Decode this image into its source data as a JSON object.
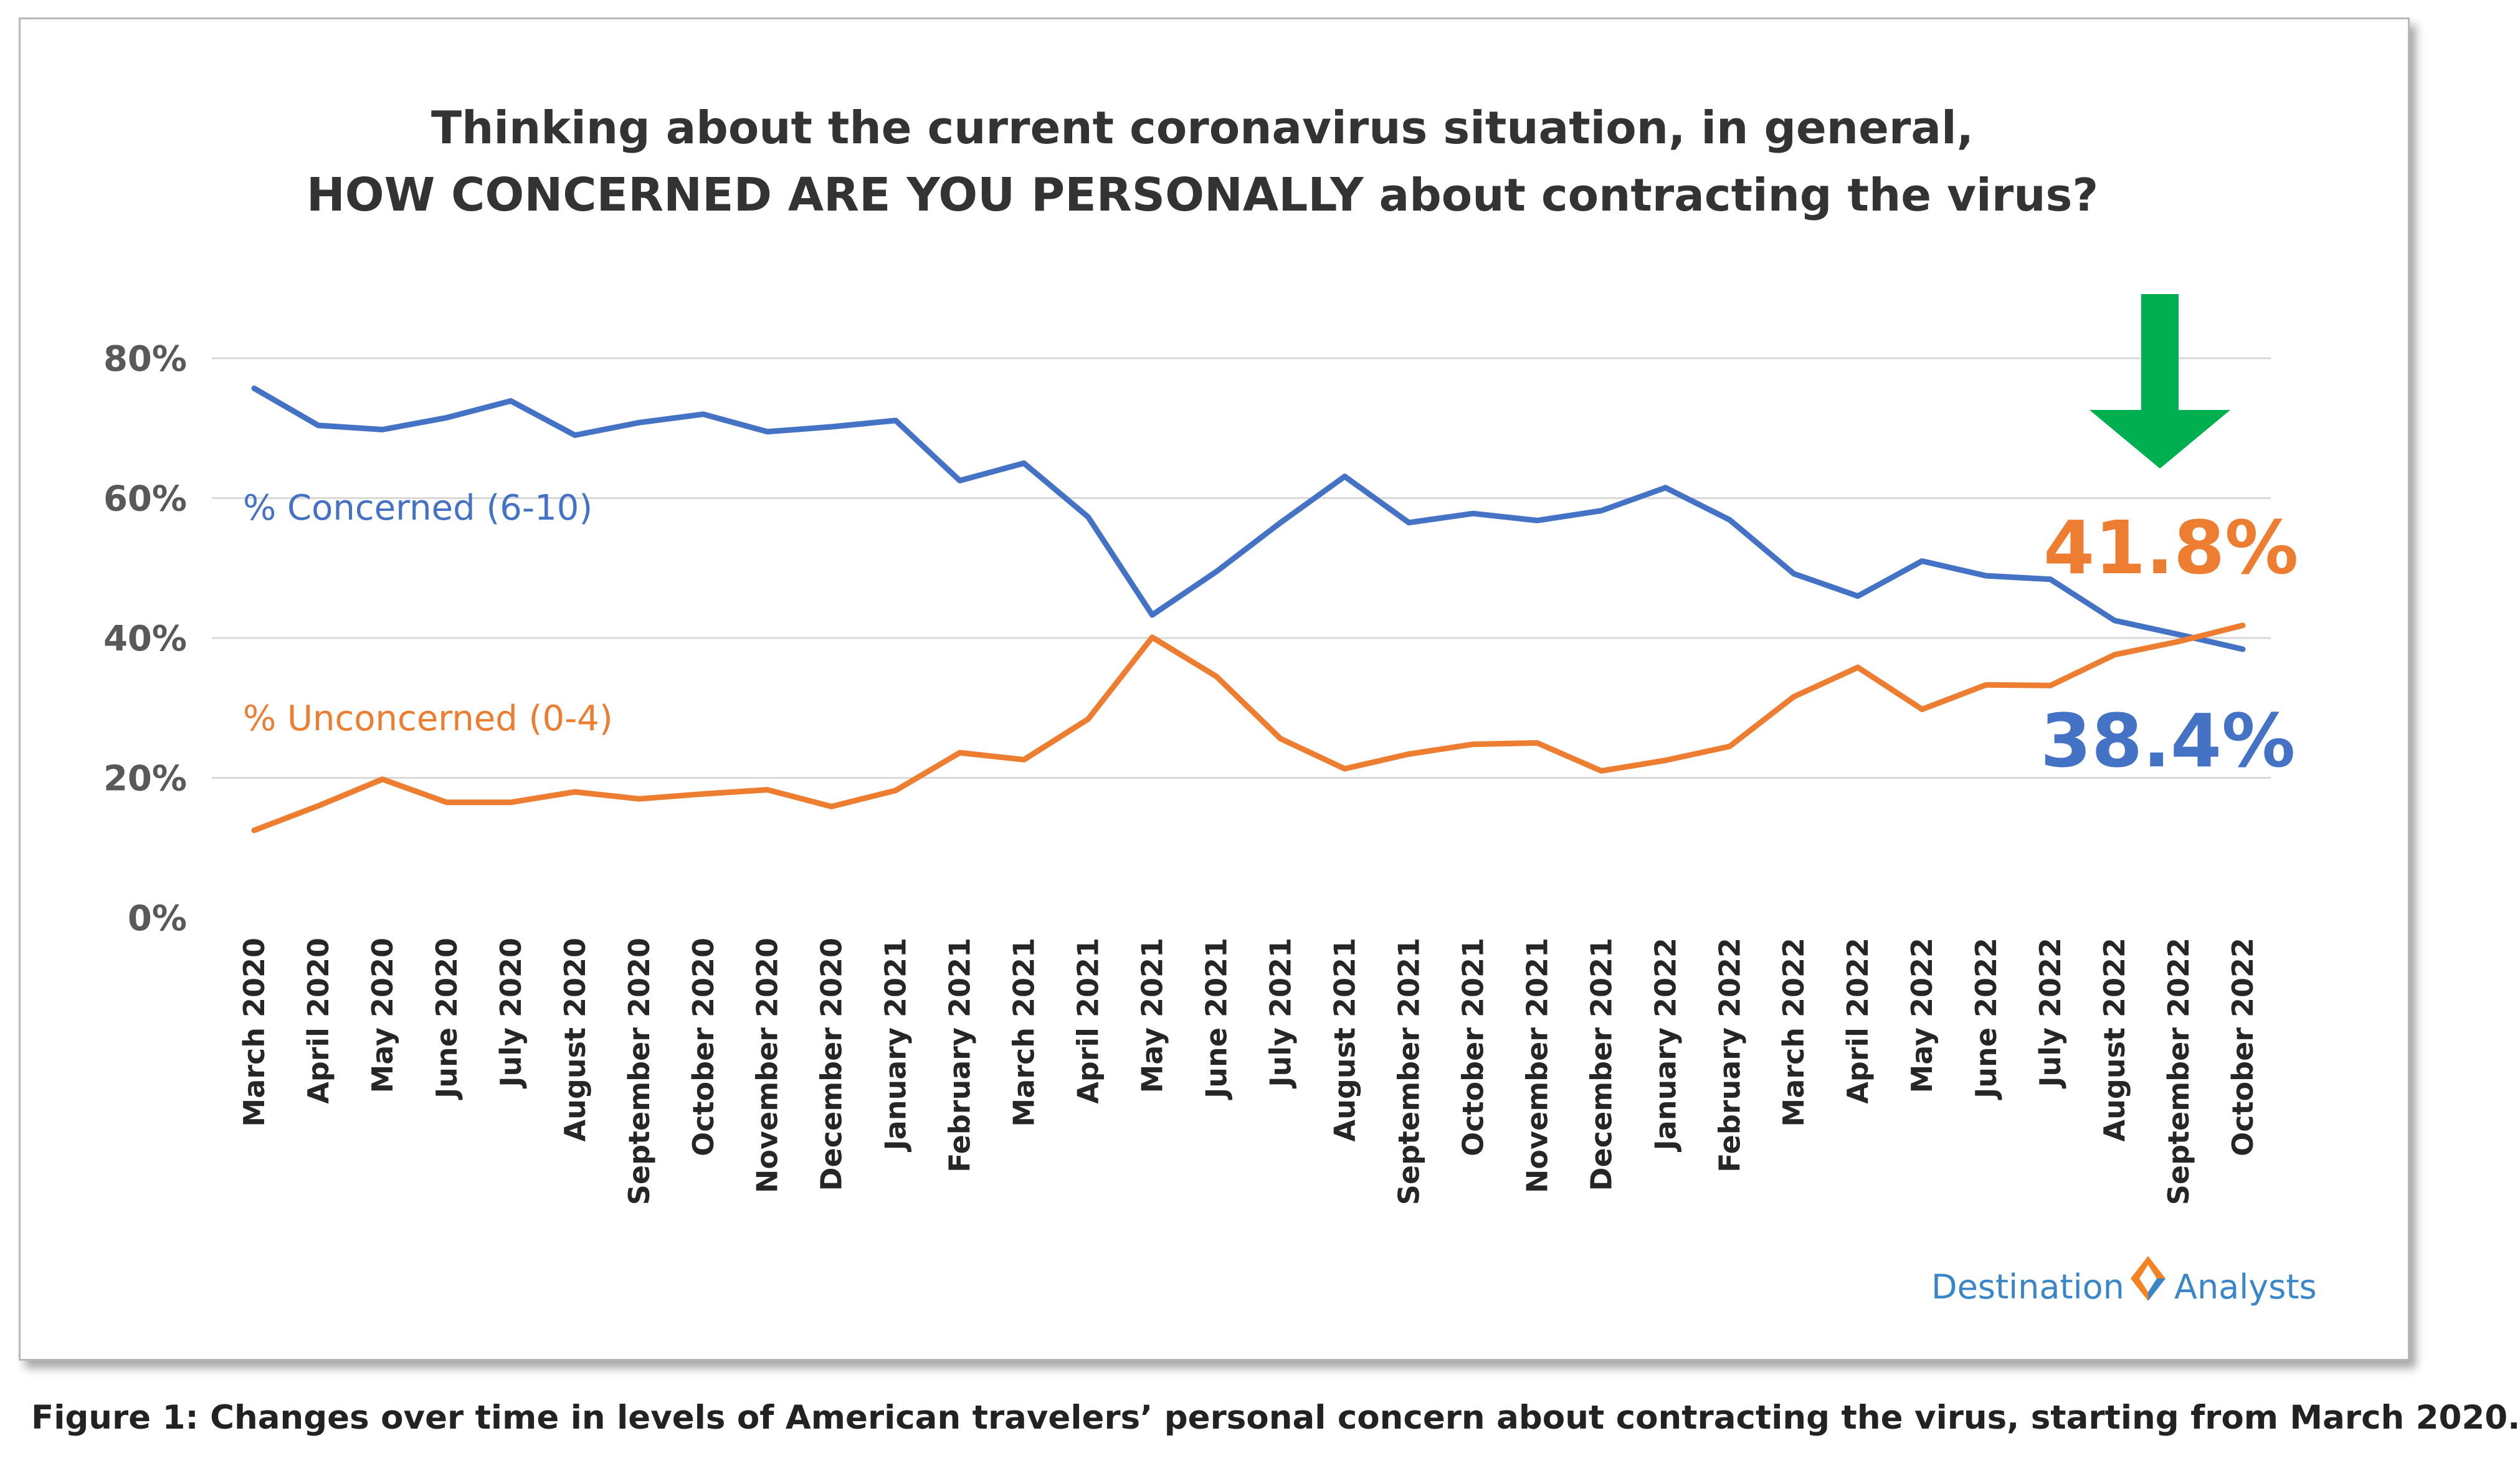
{
  "chart_data": {
    "type": "line",
    "title_line1": "Thinking about the current coronavirus situation, in general,",
    "title_line2_bold": "HOW CONCERNED ARE YOU PERSONALLY",
    "title_line2_rest": " about contracting the virus?",
    "categories": [
      "March 2020",
      "April 2020",
      "May 2020",
      "June 2020",
      "July 2020",
      "August 2020",
      "September 2020",
      "October 2020",
      "November 2020",
      "December 2020",
      "January 2021",
      "February 2021",
      "March 2021",
      "April 2021",
      "May 2021",
      "June 2021",
      "July 2021",
      "August 2021",
      "September 2021",
      "October 2021",
      "November 2021",
      "December 2021",
      "January 2022",
      "February 2022",
      "March 2022",
      "April 2022",
      "May 2022",
      "June 2022",
      "July 2022",
      "August 2022",
      "September 2022",
      "October 2022"
    ],
    "y_ticks": [
      "0%",
      "20%",
      "40%",
      "60%",
      "80%"
    ],
    "y_tick_values": [
      0,
      20,
      40,
      60,
      80
    ],
    "ylim": [
      0,
      80
    ],
    "grid": true,
    "series": [
      {
        "name": "% Concerned (6-10)",
        "color": "#4472C4",
        "values": [
          75.7,
          70.4,
          69.8,
          71.5,
          73.9,
          69.0,
          70.8,
          72.0,
          69.5,
          70.2,
          71.1,
          62.5,
          65.0,
          57.3,
          43.3,
          49.5,
          56.5,
          63.1,
          56.5,
          57.8,
          56.8,
          58.2,
          61.5,
          56.9,
          49.2,
          46.0,
          51.0,
          48.9,
          48.4,
          42.5,
          40.5,
          38.4
        ]
      },
      {
        "name": "% Unconcerned (0-4)",
        "color": "#ED7D31",
        "values": [
          12.5,
          16.0,
          19.8,
          16.5,
          16.5,
          18.0,
          17.0,
          17.7,
          18.3,
          15.9,
          18.2,
          23.6,
          22.6,
          28.4,
          40.1,
          34.5,
          25.6,
          21.3,
          23.4,
          24.8,
          25.0,
          21.0,
          22.5,
          24.5,
          31.6,
          35.8,
          29.8,
          33.3,
          33.2,
          37.6,
          39.5,
          41.8
        ]
      }
    ],
    "annotations": {
      "unconcerned_last": "41.8%",
      "concerned_last": "38.4%",
      "arrow_color": "#00B050",
      "arrow_icon": "down-arrow-icon"
    }
  },
  "logo": {
    "left_text": "Destination",
    "right_text": "Analysts",
    "text_color": "#3A86C8",
    "diamond_colors": [
      "#F58220",
      "#3A86C8"
    ]
  },
  "caption": "Figure 1: Changes over time in levels of American travelers’ personal concern about contracting the virus, starting from March 2020."
}
